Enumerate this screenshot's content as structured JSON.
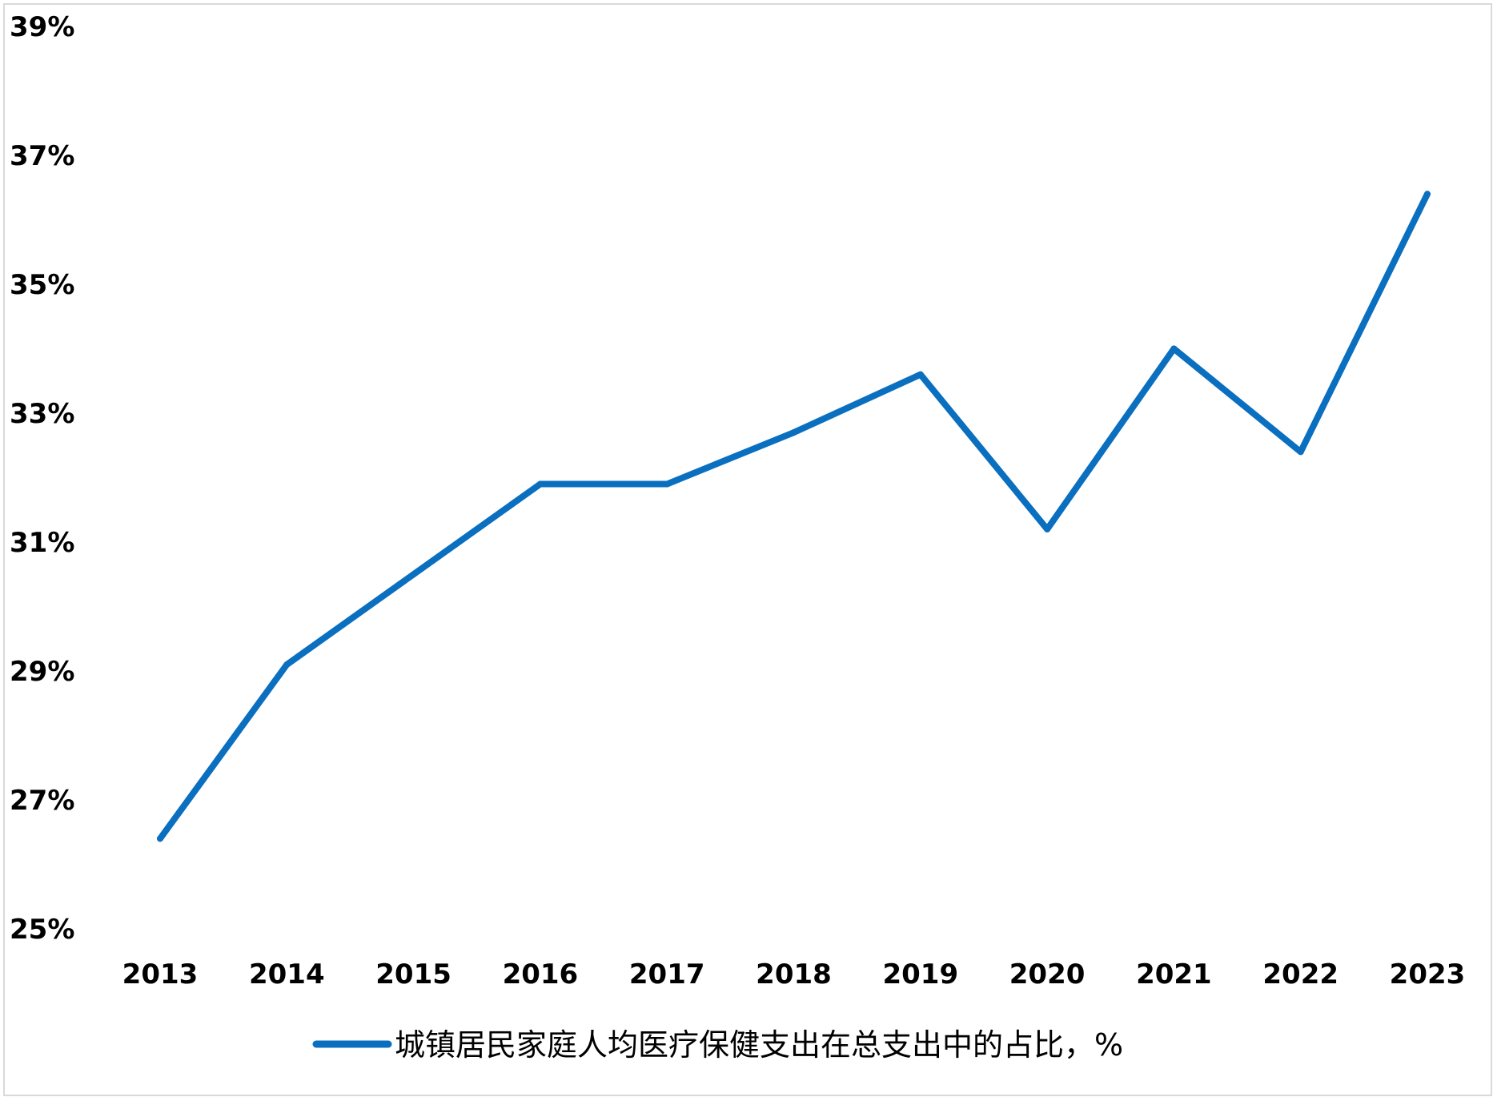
{
  "chart_data": {
    "type": "line",
    "title": "",
    "xlabel": "",
    "ylabel": "",
    "x": [
      "2013",
      "2014",
      "2015",
      "2016",
      "2017",
      "2018",
      "2019",
      "2020",
      "2021",
      "2022",
      "2023"
    ],
    "ylim": [
      25,
      39
    ],
    "yticks": [
      25,
      27,
      29,
      31,
      33,
      35,
      37,
      39
    ],
    "ytick_labels": [
      "25%",
      "27%",
      "29%",
      "31%",
      "33%",
      "35%",
      "37%",
      "39%"
    ],
    "grid": false,
    "legend_position": "bottom",
    "series": [
      {
        "name": "城镇居民家庭人均医疗保健支出在总支出中的占比，%",
        "color": "#0B6FC0",
        "values": [
          26.4,
          29.1,
          30.5,
          31.9,
          31.9,
          32.7,
          33.6,
          31.2,
          34.0,
          32.4,
          36.4
        ]
      }
    ]
  }
}
